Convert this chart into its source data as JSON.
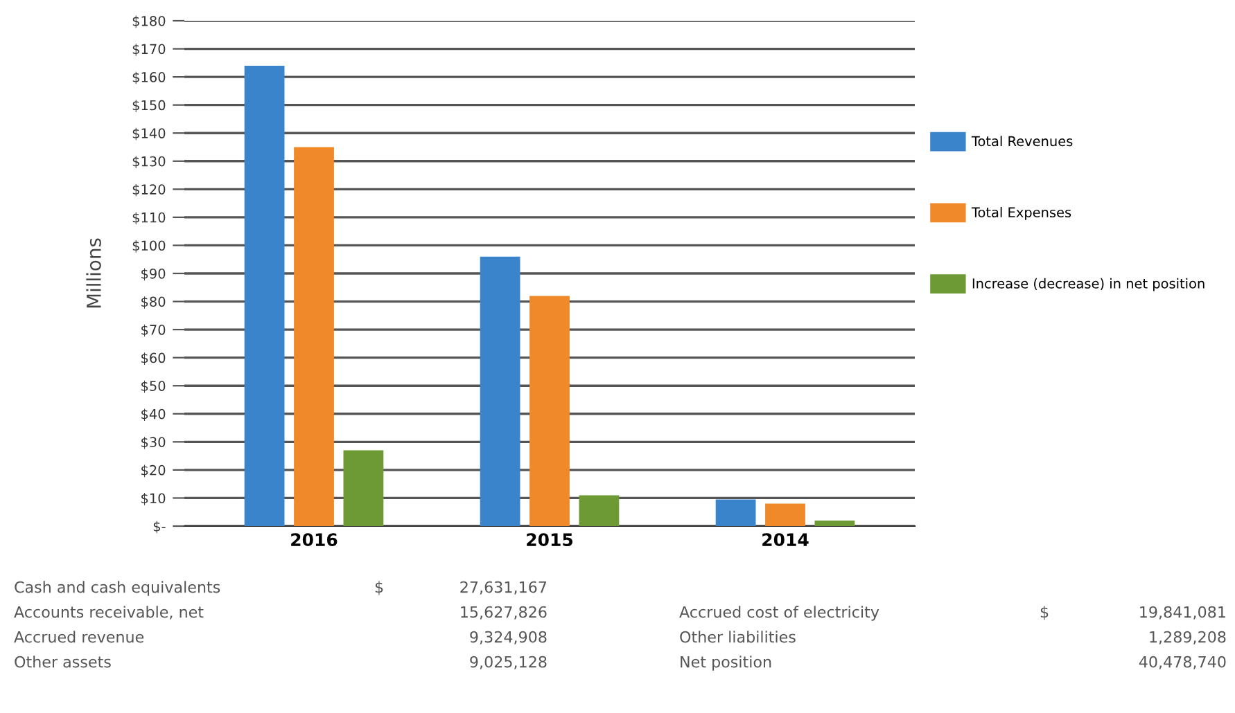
{
  "chart_data": {
    "type": "bar",
    "ylabel": "Millions",
    "categories": [
      "2016",
      "2015",
      "2014"
    ],
    "series": [
      {
        "name": "Total Revenues",
        "color": "#3a84cc",
        "values": [
          164,
          96,
          9.5
        ]
      },
      {
        "name": "Total Expenses",
        "color": "#f0892a",
        "values": [
          135,
          82,
          8
        ]
      },
      {
        "name": "Increase (decrease) in net position",
        "color": "#6e9a35",
        "values": [
          27,
          11,
          2
        ]
      }
    ],
    "ylim": [
      0,
      180
    ],
    "yticks": [
      {
        "value": 0,
        "label": "$-"
      },
      {
        "value": 10,
        "label": "$10"
      },
      {
        "value": 20,
        "label": "$20"
      },
      {
        "value": 30,
        "label": "$30"
      },
      {
        "value": 40,
        "label": "$40"
      },
      {
        "value": 50,
        "label": "$50"
      },
      {
        "value": 60,
        "label": "$60"
      },
      {
        "value": 70,
        "label": "$70"
      },
      {
        "value": 80,
        "label": "$80"
      },
      {
        "value": 90,
        "label": "$90"
      },
      {
        "value": 100,
        "label": "$100"
      },
      {
        "value": 110,
        "label": "$110"
      },
      {
        "value": 120,
        "label": "$120"
      },
      {
        "value": 130,
        "label": "$130"
      },
      {
        "value": 140,
        "label": "$140"
      },
      {
        "value": 150,
        "label": "$150"
      },
      {
        "value": 160,
        "label": "$160"
      },
      {
        "value": 170,
        "label": "$170"
      },
      {
        "value": 180,
        "label": "$180"
      }
    ],
    "grid": "y",
    "legend": "right",
    "annotations": [
      "Cash and cash equivalents",
      "$",
      "27,631,167",
      "Accounts receivable, net",
      "15,627,826",
      "Accrued revenue",
      "9,324,908",
      "Other assets",
      "9,025,128",
      "Accrued cost of electricity",
      "$",
      "19,841,081",
      "Other liabilities",
      "1,289,208",
      "Net position",
      "40,478,740"
    ]
  }
}
